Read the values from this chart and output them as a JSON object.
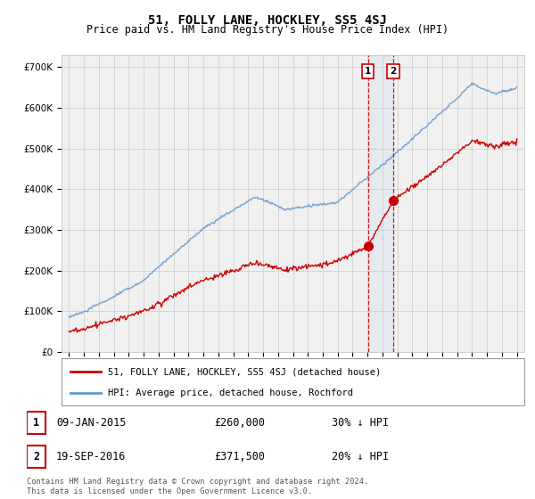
{
  "title": "51, FOLLY LANE, HOCKLEY, SS5 4SJ",
  "subtitle": "Price paid vs. HM Land Registry's House Price Index (HPI)",
  "title_fontsize": 10,
  "subtitle_fontsize": 8.5,
  "ytick_values": [
    0,
    100000,
    200000,
    300000,
    400000,
    500000,
    600000,
    700000
  ],
  "ylim": [
    0,
    730000
  ],
  "xlim_start": 1994.5,
  "xlim_end": 2025.5,
  "legend_label_red": "51, FOLLY LANE, HOCKLEY, SS5 4SJ (detached house)",
  "legend_label_blue": "HPI: Average price, detached house, Rochford",
  "transactions": [
    {
      "label": "1",
      "date": "09-JAN-2015",
      "price": "£260,000",
      "hpi": "30% ↓ HPI",
      "year": 2015.03,
      "value": 260000
    },
    {
      "label": "2",
      "date": "19-SEP-2016",
      "price": "£371,500",
      "hpi": "20% ↓ HPI",
      "year": 2016.72,
      "value": 371500
    }
  ],
  "copyright_text": "Contains HM Land Registry data © Crown copyright and database right 2024.\nThis data is licensed under the Open Government Licence v3.0.",
  "red_color": "#cc0000",
  "blue_color": "#6699cc",
  "blue_shade_color": "#aaccee",
  "grid_color": "#cccccc",
  "bg_color": "#ffffff",
  "plot_bg_color": "#f0f0f0",
  "marker_color": "#cc0000"
}
